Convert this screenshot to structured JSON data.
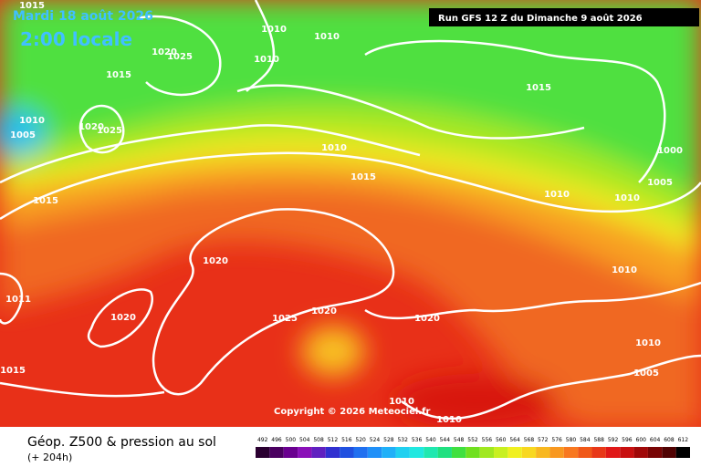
{
  "header": {
    "date": "Mardi 18 août 2026",
    "time": "2:00 locale",
    "run": "Run GFS 12 Z du Dimanche 9 août 2026"
  },
  "isobar_labels": [
    1015,
    1010,
    1010,
    1020,
    1025,
    1010,
    1015,
    1015,
    1010,
    1005,
    1020,
    1025,
    1010,
    1000,
    1015,
    1005,
    1015,
    1010,
    1010,
    1020,
    1010,
    1011,
    1020,
    1020,
    1025,
    1020,
    1010,
    1015,
    1005,
    1010,
    1010
  ],
  "copyright": "Copyright © 2026 Meteociel.fr",
  "legend": {
    "title": "Géop. Z500 & pression au sol",
    "subtitle": "(+ 204h)",
    "scale": [
      492,
      496,
      500,
      504,
      508,
      512,
      516,
      520,
      524,
      528,
      532,
      536,
      540,
      544,
      548,
      552,
      556,
      560,
      564,
      568,
      572,
      576,
      580,
      584,
      588,
      592,
      596,
      600,
      604,
      608,
      612
    ],
    "colors": [
      "#2a0030",
      "#4a0060",
      "#6a0090",
      "#8a10b8",
      "#6020c0",
      "#3030d0",
      "#2050e0",
      "#2070f0",
      "#2090f8",
      "#20b0f8",
      "#20d0f0",
      "#20e8e0",
      "#20e8b0",
      "#20e080",
      "#40e040",
      "#70e020",
      "#a0e820",
      "#c8f020",
      "#f0f020",
      "#f8d820",
      "#f8b820",
      "#f89820",
      "#f87820",
      "#f05818",
      "#e83818",
      "#e01818",
      "#c81010",
      "#a00808",
      "#780404",
      "#500202",
      "#000000"
    ]
  }
}
